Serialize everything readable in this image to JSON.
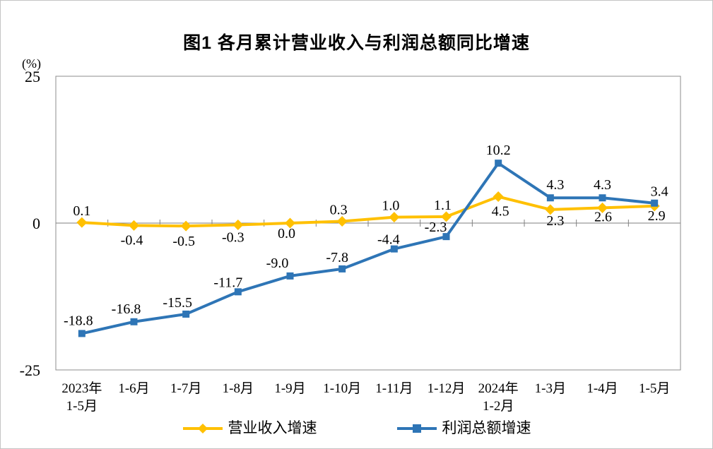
{
  "chart_data": {
    "type": "line",
    "title": "图1 各月累计营业收入与利润总额同比增速",
    "y_unit": "(%)",
    "y_ticks": [
      25,
      0,
      -25
    ],
    "ylim": [
      -25,
      25
    ],
    "grid": false,
    "legend_position": "bottom",
    "categories": [
      [
        "2023年",
        "1-5月"
      ],
      [
        "1-6月"
      ],
      [
        "1-7月"
      ],
      [
        "1-8月"
      ],
      [
        "1-9月"
      ],
      [
        "1-10月"
      ],
      [
        "1-11月"
      ],
      [
        "1-12月"
      ],
      [
        "2024年",
        "1-2月"
      ],
      [
        "1-3月"
      ],
      [
        "1-4月"
      ],
      [
        "1-5月"
      ]
    ],
    "series": [
      {
        "name": "营业收入增速",
        "color": "#FFC000",
        "marker": "diamond",
        "values": [
          0.1,
          -0.4,
          -0.5,
          -0.3,
          0.0,
          0.3,
          1.0,
          1.1,
          4.5,
          2.3,
          2.6,
          2.9
        ],
        "labels": [
          "0.1",
          "-0.4",
          "-0.5",
          "-0.3",
          "0.0",
          "0.3",
          "1.0",
          "1.1",
          "4.5",
          "2.3",
          "2.6",
          "2.9"
        ],
        "label_offsets": [
          [
            0,
            -10
          ],
          [
            -3,
            27
          ],
          [
            -3,
            28
          ],
          [
            -7,
            24
          ],
          [
            -5,
            21
          ],
          [
            -5,
            -10
          ],
          [
            -5,
            -10
          ],
          [
            -5,
            -10
          ],
          [
            3,
            27
          ],
          [
            7,
            22
          ],
          [
            1,
            19
          ],
          [
            3,
            20
          ]
        ]
      },
      {
        "name": "利润总额增速",
        "color": "#2E75B6",
        "marker": "square",
        "values": [
          -18.8,
          -16.8,
          -15.5,
          -11.7,
          -9.0,
          -7.8,
          -4.4,
          -2.3,
          10.2,
          4.3,
          4.3,
          3.4
        ],
        "labels": [
          "-18.8",
          "-16.8",
          "-15.5",
          "-11.7",
          "-9.0",
          "-7.8",
          "-4.4",
          "-2.3",
          "10.2",
          "4.3",
          "4.3",
          "3.4"
        ],
        "label_offsets": [
          [
            -5,
            -12
          ],
          [
            -11,
            -12
          ],
          [
            -12,
            -10
          ],
          [
            -14,
            -7
          ],
          [
            -18,
            -12
          ],
          [
            -7,
            -10
          ],
          [
            -8,
            -7
          ],
          [
            -15,
            -7
          ],
          [
            0,
            -12
          ],
          [
            7,
            -12
          ],
          [
            0,
            -12
          ],
          [
            7,
            -10
          ]
        ]
      }
    ]
  }
}
